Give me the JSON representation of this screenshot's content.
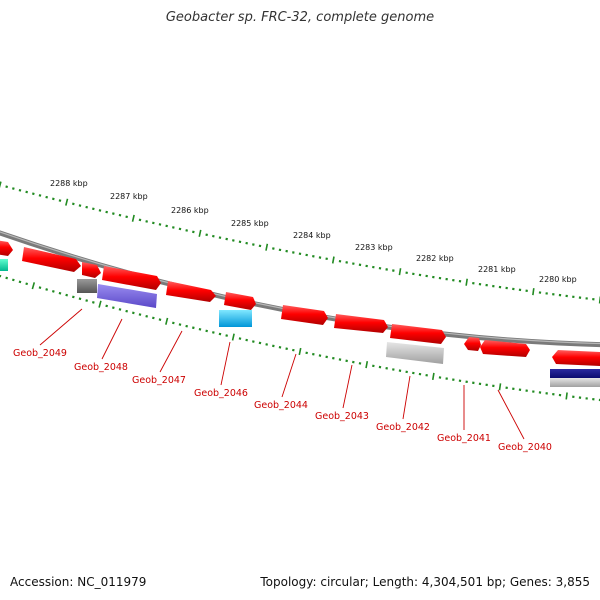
{
  "title": "Geobacter sp. FRC-32, complete genome",
  "accession": "Accession: NC_011979",
  "topology": "Topology: circular; Length: 4,304,501 bp; Genes: 3,855",
  "kbp_labels": [
    "2288 kbp",
    "2287 kbp",
    "2286 kbp",
    "2285 kbp",
    "2284 kbp",
    "2283 kbp",
    "2282 kbp",
    "2281 kbp",
    "2280 kbp"
  ],
  "gene_labels": [
    "Geob_2049",
    "Geob_2048",
    "Geob_2047",
    "Geob_2046",
    "Geob_2044",
    "Geob_2043",
    "Geob_2042",
    "Geob_2041",
    "Geob_2040"
  ],
  "colors": {
    "backbone": "#808080",
    "gene_forward": "#ff0000",
    "tick": "#228b22",
    "label": "#cc0000"
  }
}
